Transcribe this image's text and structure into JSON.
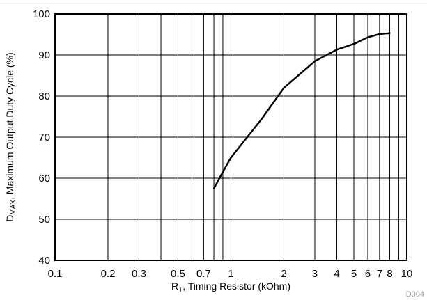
{
  "chart_data": {
    "type": "line",
    "x_scale": "log",
    "xlim": [
      0.1,
      10
    ],
    "ylim": [
      40,
      100
    ],
    "xticks": [
      0.1,
      0.2,
      0.3,
      0.5,
      0.7,
      1,
      2,
      3,
      4,
      5,
      6,
      7,
      8,
      10
    ],
    "xtick_labels": [
      "0.1",
      "0.2",
      "0.3",
      "0.5",
      "0.7",
      "1",
      "2",
      "3",
      "4",
      "5",
      "6",
      "7",
      "8",
      "10"
    ],
    "yticks": [
      40,
      50,
      60,
      70,
      80,
      90,
      100
    ],
    "ytick_labels": [
      "40",
      "50",
      "60",
      "70",
      "80",
      "90",
      "100"
    ],
    "x_gridlines": [
      0.2,
      0.3,
      0.4,
      0.5,
      0.6,
      0.7,
      0.8,
      0.9,
      1,
      2,
      3,
      4,
      5,
      6,
      7,
      8,
      9
    ],
    "grid": true,
    "xlabel_main": "R",
    "xlabel_sub": "T",
    "xlabel_rest": ", Timing Resistor (kOhm)",
    "ylabel_main": "D",
    "ylabel_sub": "MAX",
    "ylabel_rest": ", Maximum Output Duty Cycle (%)",
    "annotation": "D004",
    "series": [
      {
        "x": [
          0.8,
          0.9,
          1.0,
          1.5,
          2.0,
          3.0,
          4.0,
          5.0,
          6.0,
          7.0,
          8.0
        ],
        "y": [
          57.5,
          61.5,
          65.0,
          74.5,
          82.0,
          88.5,
          91.3,
          92.7,
          94.3,
          95.1,
          95.3
        ]
      }
    ]
  }
}
